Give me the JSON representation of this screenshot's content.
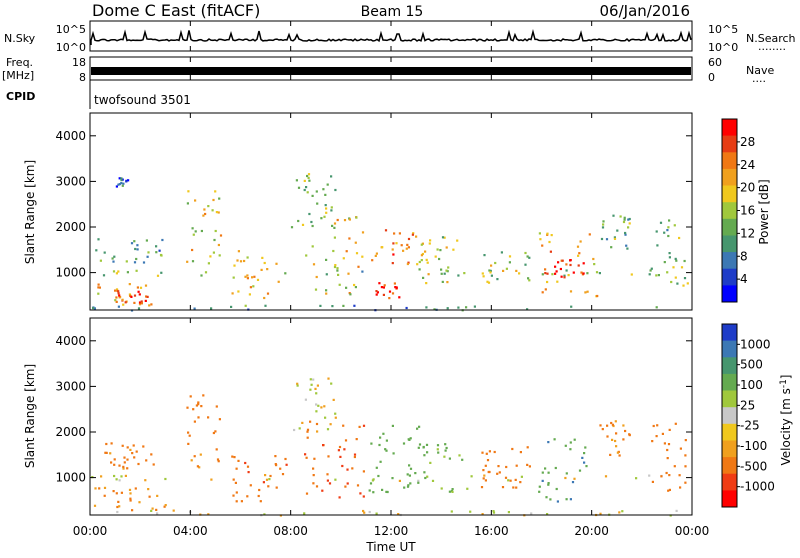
{
  "header": {
    "station": "Dome C East (fitACF)",
    "beam": "Beam 15",
    "date": "06/Jan/2016"
  },
  "side_labels": {
    "nsky": "N.Sky",
    "nsearch": "N.Search",
    "nsearch_dots": "........",
    "freq_top": "Freq.",
    "freq_unit": "[MHz]",
    "nave": "Nave",
    "nave_dots": "....",
    "cpid": "CPID"
  },
  "strip_ticks": {
    "nsky_left": [
      "10^5",
      "10^0"
    ],
    "nsky_right": [
      "10^5",
      "10^0"
    ],
    "freq_left": [
      "18",
      "8"
    ],
    "nave_right": [
      "60",
      "0"
    ]
  },
  "cpid_value": "twofsound 3501",
  "time_axis": {
    "label": "Time UT",
    "ticks": [
      "00:00",
      "04:00",
      "08:00",
      "12:00",
      "16:00",
      "20:00",
      "00:00"
    ]
  },
  "colors": {
    "gray": "#c8c8c8",
    "power_scale": [
      "#0000ff",
      "#1e3cc8",
      "#3c78b4",
      "#46966e",
      "#64aa50",
      "#a0c83c",
      "#f0c81e",
      "#f0a01e",
      "#f07814",
      "#e63c14",
      "#ff0000"
    ],
    "velocity_scale": [
      "#ff0000",
      "#f03c14",
      "#f07814",
      "#f0a01e",
      "#f0c81e",
      "#c8c8c8",
      "#a0c83c",
      "#64aa50",
      "#46966e",
      "#3c78b4",
      "#1e3cc8"
    ]
  },
  "chart_data": [
    {
      "type": "heatmap",
      "name": "power",
      "ylabel": "Slant Range [km]",
      "xlabel": "",
      "xlim_hours": [
        0,
        24
      ],
      "ylim_km": [
        180,
        4500
      ],
      "yticks": [
        "4000",
        "3000",
        "2000",
        "1000"
      ],
      "colorbar_label": "Power [dB]",
      "colorbar_ticks": [
        "28",
        "24",
        "20",
        "16",
        "12",
        "8",
        "4"
      ],
      "colorbar_range": [
        0,
        30
      ],
      "blobs": [
        {
          "t0": 0.0,
          "t1": 2.6,
          "r0": 300,
          "r1": 800,
          "lvl": 20
        },
        {
          "t0": 1.0,
          "t1": 2.4,
          "r0": 350,
          "r1": 650,
          "lvl": 28
        },
        {
          "t0": 0.0,
          "t1": 24.0,
          "r0": 950,
          "r1": 1080,
          "lvl": 12
        },
        {
          "t0": 0.2,
          "t1": 3.0,
          "r0": 1200,
          "r1": 1800,
          "lvl": 10
        },
        {
          "t0": 1.0,
          "t1": 1.5,
          "r0": 2900,
          "r1": 3100,
          "lvl": 6
        },
        {
          "t0": 3.8,
          "t1": 5.2,
          "r0": 1200,
          "r1": 2900,
          "lvl": 18
        },
        {
          "t0": 5.5,
          "t1": 7.5,
          "r0": 450,
          "r1": 1500,
          "lvl": 18
        },
        {
          "t0": 8.0,
          "t1": 9.8,
          "r0": 2000,
          "r1": 3200,
          "lvl": 14
        },
        {
          "t0": 8.5,
          "t1": 11.0,
          "r0": 500,
          "r1": 2300,
          "lvl": 18
        },
        {
          "t0": 11.0,
          "t1": 13.0,
          "r0": 1200,
          "r1": 2000,
          "lvl": 24
        },
        {
          "t0": 11.2,
          "t1": 12.3,
          "r0": 450,
          "r1": 800,
          "lvl": 28
        },
        {
          "t0": 13.0,
          "t1": 15.0,
          "r0": 700,
          "r1": 1800,
          "lvl": 16
        },
        {
          "t0": 15.5,
          "t1": 17.5,
          "r0": 800,
          "r1": 1500,
          "lvl": 14
        },
        {
          "t0": 17.8,
          "t1": 20.2,
          "r0": 500,
          "r1": 1900,
          "lvl": 20
        },
        {
          "t0": 18.4,
          "t1": 19.8,
          "r0": 800,
          "r1": 1300,
          "lvl": 28
        },
        {
          "t0": 20.3,
          "t1": 21.5,
          "r0": 1500,
          "r1": 2300,
          "lvl": 12
        },
        {
          "t0": 22.3,
          "t1": 23.8,
          "r0": 700,
          "r1": 2300,
          "lvl": 12
        },
        {
          "t0": 0.0,
          "t1": 24.0,
          "r0": 190,
          "r1": 300,
          "lvl": 8
        }
      ]
    },
    {
      "type": "heatmap",
      "name": "velocity",
      "ylabel": "Slant Range [km]",
      "xlabel": "Time UT",
      "xlim_hours": [
        0,
        24
      ],
      "ylim_km": [
        180,
        4500
      ],
      "yticks": [
        "4000",
        "3000",
        "2000",
        "1000"
      ],
      "colorbar_label": "Velocity [m s^-1]",
      "colorbar_ticks": [
        "1000",
        "500",
        "100",
        "25",
        "-25",
        "-100",
        "-500",
        "-1000"
      ],
      "colorbar_range": [
        -1200,
        1200
      ],
      "blobs": [
        {
          "t0": 0.0,
          "t1": 3.0,
          "r0": 300,
          "r1": 800,
          "v": -120
        },
        {
          "t0": 0.0,
          "t1": 24.0,
          "r0": 950,
          "r1": 1080,
          "v": 0
        },
        {
          "t0": 0.5,
          "t1": 2.5,
          "r0": 1200,
          "r1": 1800,
          "v": -200
        },
        {
          "t0": 3.8,
          "t1": 5.2,
          "r0": 1200,
          "r1": 2900,
          "v": -200
        },
        {
          "t0": 5.5,
          "t1": 7.8,
          "r0": 450,
          "r1": 1500,
          "v": -350
        },
        {
          "t0": 8.0,
          "t1": 9.8,
          "r0": 2000,
          "r1": 3200,
          "v": 0
        },
        {
          "t0": 8.5,
          "t1": 11.0,
          "r0": 500,
          "r1": 2300,
          "v": -400
        },
        {
          "t0": 11.0,
          "t1": 13.5,
          "r0": 700,
          "r1": 2200,
          "v": 300
        },
        {
          "t0": 13.0,
          "t1": 15.0,
          "r0": 700,
          "r1": 1800,
          "v": 150
        },
        {
          "t0": 15.5,
          "t1": 17.5,
          "r0": 800,
          "r1": 1700,
          "v": -300
        },
        {
          "t0": 17.8,
          "t1": 20.2,
          "r0": 500,
          "r1": 1900,
          "v": 400
        },
        {
          "t0": 20.3,
          "t1": 21.5,
          "r0": 1500,
          "r1": 2300,
          "v": -150
        },
        {
          "t0": 22.3,
          "t1": 23.8,
          "r0": 700,
          "r1": 2300,
          "v": -300
        },
        {
          "t0": 0.0,
          "t1": 24.0,
          "r0": 190,
          "r1": 300,
          "v": 0
        }
      ]
    }
  ]
}
